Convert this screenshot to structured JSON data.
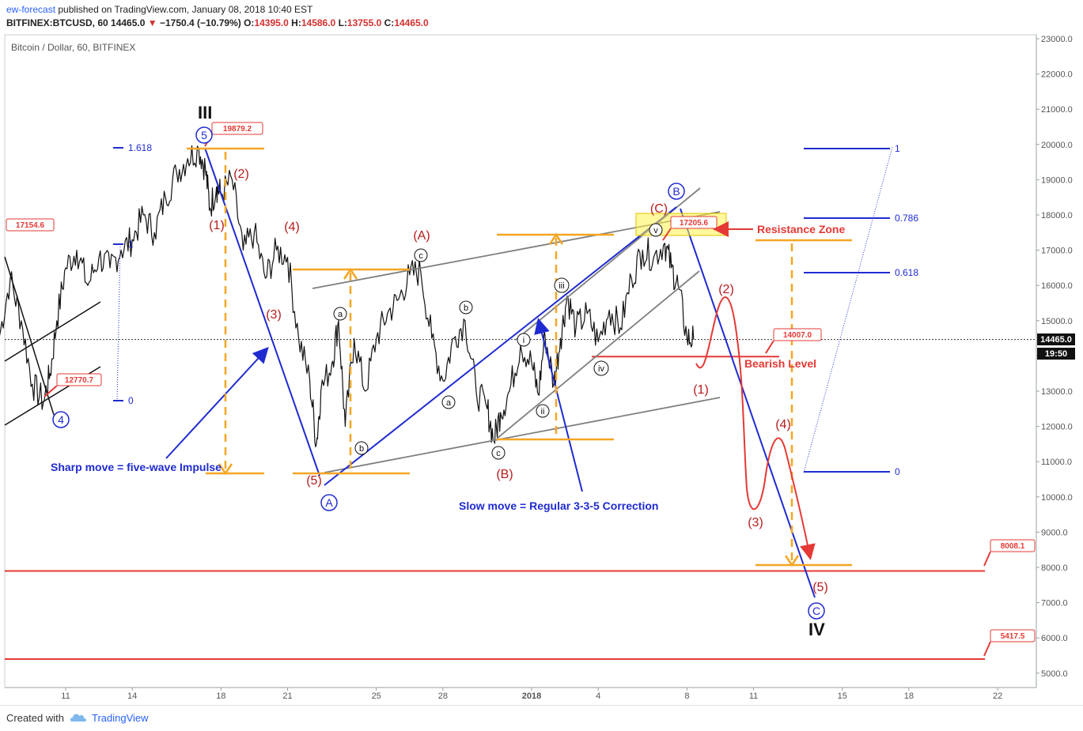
{
  "header": {
    "publisher": "ew-forecast",
    "published_text": "published on TradingView.com, January 08, 2018 10:40 EST",
    "symbol": "BITFINEX:BTCUSD, 60",
    "last": "14465.0",
    "change": "−1750.4 (−10.79%)",
    "open_label": "O:",
    "open": "14395.0",
    "high_label": "H:",
    "high": "14586.0",
    "low_label": "L:",
    "low": "13755.0",
    "close_label": "C:",
    "close": "14465.0"
  },
  "footer": {
    "created_with": "Created with",
    "brand": "TradingView"
  },
  "colors": {
    "blue": "#1f2bd1",
    "red": "#c0392b",
    "orange": "#f5a623",
    "gray": "#7f7f7f",
    "hline": "#e53935"
  },
  "chart_data": {
    "type": "line",
    "title": "Bitcoin / Dollar, 60, BITFINEX",
    "ylim": [
      4600,
      23300
    ],
    "yticks": [
      "23000.0",
      "22000.0",
      "21000.0",
      "20000.0",
      "19000.0",
      "18000.0",
      "17000.0",
      "16000.0",
      "15000.0",
      "14000.0",
      "13000.0",
      "12000.0",
      "11000.0",
      "10000.0",
      "9000.0",
      "8000.0",
      "7000.0",
      "6000.0",
      "5000.0"
    ],
    "yvalues": [
      23000,
      22000,
      21000,
      20000,
      19000,
      18000,
      17000,
      16000,
      15000,
      14000,
      13000,
      12000,
      11000,
      10000,
      9000,
      8000,
      7000,
      6000,
      5000
    ],
    "xticks": [
      {
        "label": "11",
        "day": 11
      },
      {
        "label": "14",
        "day": 14
      },
      {
        "label": "18",
        "day": 18
      },
      {
        "label": "21",
        "day": 21
      },
      {
        "label": "25",
        "day": 25
      },
      {
        "label": "28",
        "day": 28
      },
      {
        "label": "2018",
        "day": 32
      },
      {
        "label": "4",
        "day": 35
      },
      {
        "label": "8",
        "day": 39
      },
      {
        "label": "11",
        "day": 42
      },
      {
        "label": "15",
        "day": 46
      },
      {
        "label": "18",
        "day": 49
      },
      {
        "label": "22",
        "day": 53
      }
    ],
    "x_unit": "days since Dec 1, 2017",
    "series": [
      {
        "name": "BTCUSD",
        "x": [
          8.0,
          8.5,
          9.0,
          9.5,
          10.0,
          10.3,
          10.6,
          11.0,
          11.5,
          12.0,
          12.5,
          13.0,
          13.5,
          14.0,
          14.5,
          15.0,
          15.5,
          16.0,
          16.5,
          17.0,
          17.3,
          17.5,
          17.8,
          18.0,
          18.5,
          19.0,
          19.5,
          20.0,
          20.5,
          21.0,
          21.5,
          22.0,
          22.3,
          22.5,
          23.0,
          23.3,
          23.6,
          24.0,
          24.5,
          25.0,
          25.5,
          26.0,
          26.5,
          27.0,
          27.5,
          28.0,
          28.5,
          29.0,
          29.5,
          30.0,
          30.3,
          30.6,
          31.0,
          31.5,
          32.0,
          32.3,
          32.6,
          33.0,
          33.3,
          33.6,
          34.0,
          34.5,
          35.0,
          35.5,
          36.0,
          36.5,
          37.0,
          37.5,
          38.0,
          38.3,
          38.6,
          39.0,
          39.3
        ],
        "values": [
          14500,
          16200,
          15000,
          13200,
          12700,
          13500,
          15000,
          16500,
          17000,
          16000,
          16800,
          16500,
          17000,
          17300,
          18000,
          17500,
          18500,
          19200,
          19600,
          19879,
          19300,
          18200,
          18800,
          18600,
          19000,
          17000,
          17500,
          16200,
          17000,
          16800,
          14500,
          13300,
          11500,
          13000,
          13800,
          15000,
          12000,
          14500,
          13000,
          14500,
          15200,
          15600,
          16300,
          16400,
          14500,
          13300,
          14500,
          15000,
          13000,
          12500,
          11600,
          12400,
          13000,
          14300,
          13800,
          12900,
          14600,
          13200,
          14500,
          15700,
          14800,
          15200,
          14400,
          15300,
          14800,
          16200,
          17000,
          16800,
          17200,
          16500,
          16000,
          14500,
          14465
        ]
      }
    ],
    "hlines": [
      {
        "label": "8008.1",
        "value": 7900
      },
      {
        "label": "5417.5",
        "value": 5400
      },
      {
        "label": "14007.0",
        "value": 13980
      },
      {
        "label": "current",
        "value": 14465
      }
    ],
    "last_price": "14465.0",
    "countdown": "19:50",
    "price_tags": [
      "19879.2",
      "17154.6",
      "12770.7",
      "17205.6",
      "14007.0",
      "8008.1",
      "5417.5"
    ],
    "fib_left": [
      "1.618",
      "1",
      "0"
    ],
    "fib_right": [
      "1",
      "0.786",
      "0.618",
      "0"
    ],
    "wave_labels": {
      "III": "III",
      "IV": "IV",
      "w5": "5",
      "w4": "4",
      "wA": "A",
      "wB": "B",
      "wC": "C",
      "r1": "(1)",
      "r2": "(2)",
      "r3": "(3)",
      "r4": "(4)",
      "r5": "(5)",
      "rA": "(A)",
      "rB": "(B)",
      "rC": "(C)",
      "f1": "(1)",
      "f2": "(2)",
      "f3": "(3)",
      "f4": "(4)",
      "f5": "(5)",
      "a1": "a",
      "b1": "b",
      "c1": "c",
      "a2": "a",
      "b2": "b",
      "c2": "c",
      "i": "i",
      "ii": "ii",
      "iii": "iii",
      "iv": "iv",
      "v": "v"
    },
    "annotations": {
      "sharp": "Sharp move = five-wave Impulse",
      "slow": "Slow move = Regular 3-3-5 Correction",
      "resistance": "Resistance Zone",
      "bearish": "Bearish Level"
    }
  }
}
